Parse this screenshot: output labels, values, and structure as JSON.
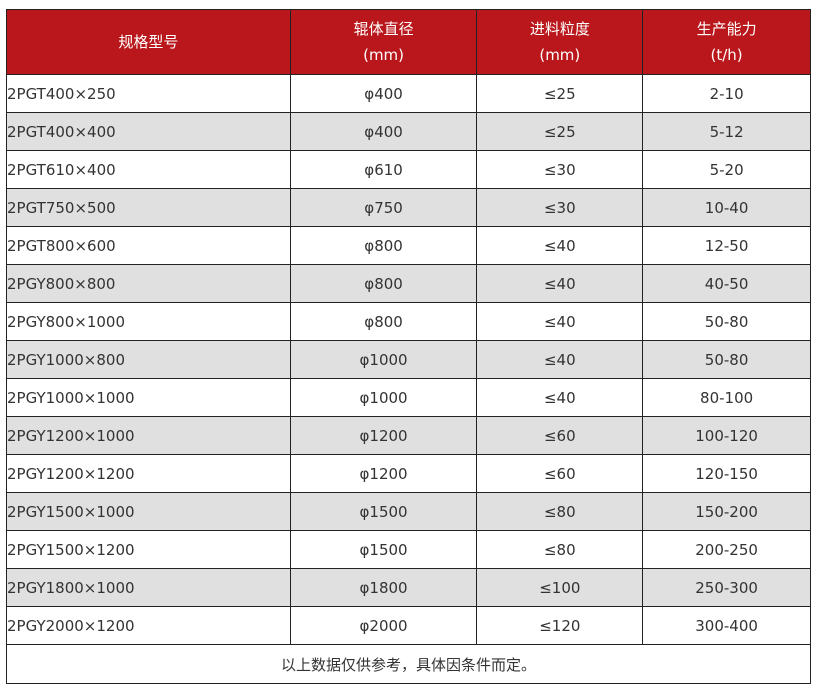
{
  "header": [
    {
      "l1": "规格型号",
      "l2": ""
    },
    {
      "l1": "辊体直径",
      "l2": "(mm)"
    },
    {
      "l1": "进料粒度",
      "l2": "(mm)"
    },
    {
      "l1": "生产能力",
      "l2": "(t/h)"
    }
  ],
  "rows": [
    [
      "2PGT400×250",
      "φ400",
      "≤25",
      "2-10"
    ],
    [
      "2PGT400×400",
      "φ400",
      "≤25",
      "5-12"
    ],
    [
      "2PGT610×400",
      "φ610",
      "≤30",
      "5-20"
    ],
    [
      "2PGT750×500",
      "φ750",
      "≤30",
      "10-40"
    ],
    [
      "2PGT800×600",
      "φ800",
      "≤40",
      "12-50"
    ],
    [
      "2PGY800×800",
      "φ800",
      "≤40",
      "40-50"
    ],
    [
      "2PGY800×1000",
      "φ800",
      "≤40",
      "50-80"
    ],
    [
      "2PGY1000×800",
      "φ1000",
      "≤40",
      "50-80"
    ],
    [
      "2PGY1000×1000",
      "φ1000",
      "≤40",
      "80-100"
    ],
    [
      "2PGY1200×1000",
      "φ1200",
      "≤60",
      "100-120"
    ],
    [
      "2PGY1200×1200",
      "φ1200",
      "≤60",
      "120-150"
    ],
    [
      "2PGY1500×1000",
      "φ1500",
      "≤80",
      "150-200"
    ],
    [
      "2PGY1500×1200",
      "φ1500",
      "≤80",
      "200-250"
    ],
    [
      "2PGY1800×1000",
      "φ1800",
      "≤100",
      "250-300"
    ],
    [
      "2PGY2000×1200",
      "φ2000",
      "≤120",
      "300-400"
    ]
  ],
  "footer": "以上数据仅供参考，具体因条件而定。",
  "colors": {
    "header_bg": "#b9171b",
    "alt_row": "#e0e0e0"
  }
}
